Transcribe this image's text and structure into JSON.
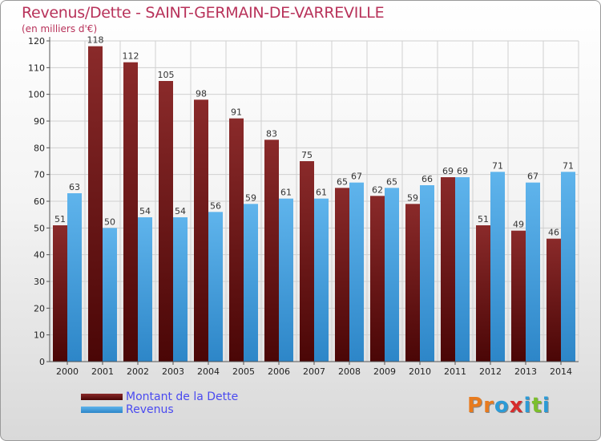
{
  "header": {
    "title": "Revenus/Dette - SAINT-GERMAIN-DE-VARREVILLE",
    "subtitle": "(en milliers d'€)"
  },
  "legend": {
    "debt_label": "Montant de la Dette",
    "revenue_label": "Revenus"
  },
  "logo": {
    "letters": [
      "P",
      "r",
      "o",
      "x",
      "i",
      "t",
      "i"
    ],
    "colors": [
      "#e87b1e",
      "#e87b1e",
      "#2c9bd6",
      "#d62c2c",
      "#2c9bd6",
      "#7cbf2c",
      "#2c9bd6"
    ]
  },
  "colors": {
    "debt": "#6b1414",
    "revenue": "#4aa3e0",
    "text": "#b8325a"
  },
  "chart_data": {
    "type": "bar",
    "title": "Revenus/Dette - SAINT-GERMAIN-DE-VARREVILLE",
    "ylabel": "(en milliers d'€)",
    "xlabel": "",
    "ylim": [
      0,
      120
    ],
    "yticks": [
      0,
      10,
      20,
      30,
      40,
      50,
      60,
      70,
      80,
      90,
      100,
      110,
      120
    ],
    "grid": true,
    "legend_position": "bottom-left",
    "categories": [
      "2000",
      "2001",
      "2002",
      "2003",
      "2004",
      "2005",
      "2006",
      "2007",
      "2008",
      "2009",
      "2010",
      "2011",
      "2012",
      "2013",
      "2014"
    ],
    "series": [
      {
        "name": "Montant de la Dette",
        "values": [
          51,
          118,
          112,
          105,
          98,
          91,
          83,
          75,
          65,
          62,
          59,
          69,
          51,
          49,
          46
        ]
      },
      {
        "name": "Revenus",
        "values": [
          63,
          50,
          54,
          54,
          56,
          59,
          61,
          61,
          67,
          65,
          66,
          69,
          71,
          67,
          71
        ]
      }
    ]
  }
}
